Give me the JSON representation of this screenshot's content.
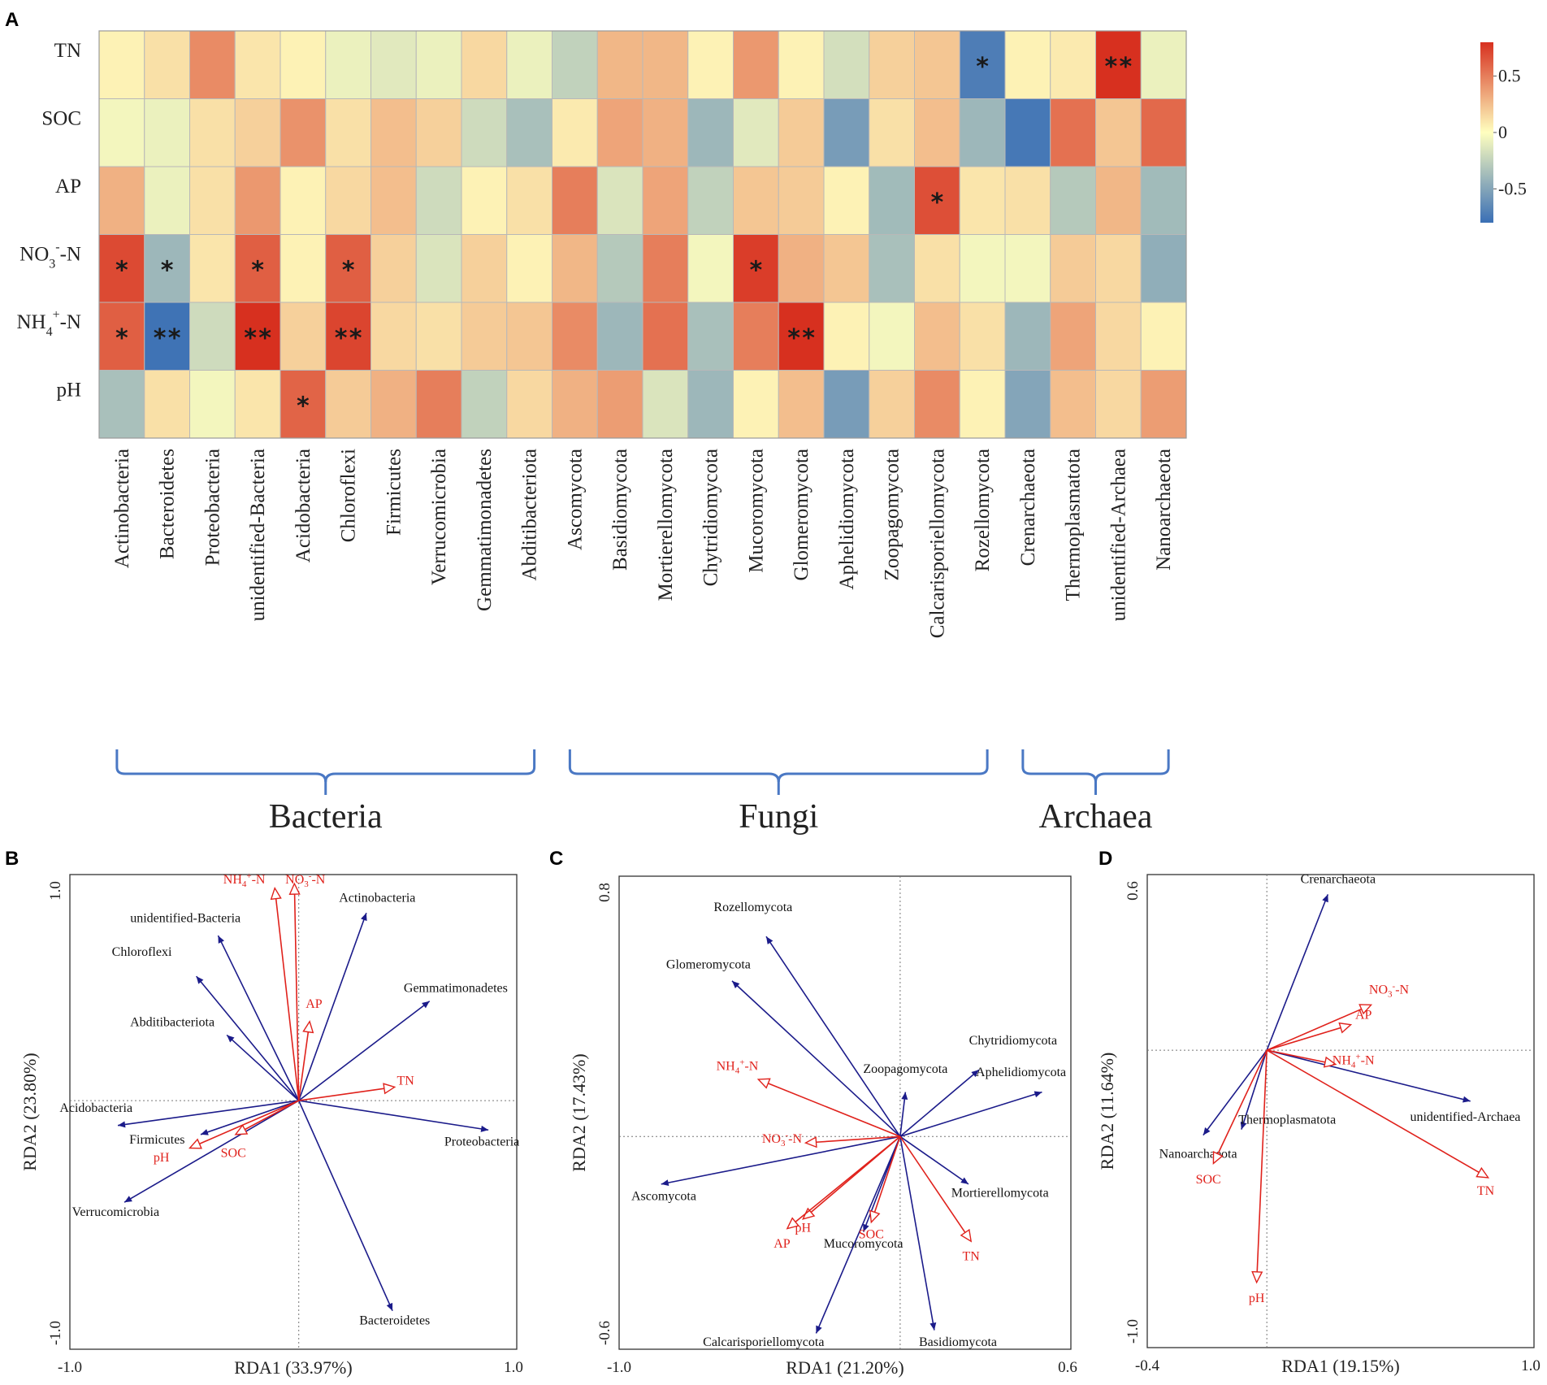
{
  "chart_data": [
    {
      "panel": "A",
      "type": "heatmap",
      "rows": [
        "TN",
        "SOC",
        "AP",
        "NO3-N",
        "NH4+-N",
        "pH"
      ],
      "row_labels": [
        {
          "main": "TN",
          "sub": "",
          "sup": "",
          "tail": ""
        },
        {
          "main": "SOC",
          "sub": "",
          "sup": "",
          "tail": ""
        },
        {
          "main": "AP",
          "sub": "",
          "sup": "",
          "tail": ""
        },
        {
          "main": "NO",
          "sub": "3",
          "sup": "-",
          "tail": "-N"
        },
        {
          "main": "NH",
          "sub": "4",
          "sup": "+",
          "tail": "-N"
        },
        {
          "main": "pH",
          "sub": "",
          "sup": "",
          "tail": ""
        }
      ],
      "columns": [
        "Actinobacteria",
        "Bacteroidetes",
        "Proteobacteria",
        "unidentified-Bacteria",
        "Acidobacteria",
        "Chloroflexi",
        "Firmicutes",
        "Verrucomicrobia",
        "Gemmatimonadetes",
        "Abditibacteriota",
        "Ascomycota",
        "Basidiomycota",
        "Mortierellomycota",
        "Chytridiomycota",
        "Mucoromycota",
        "Glomeromycota",
        "Aphelidiomycota",
        "Zoopagomycota",
        "Calcarisporiellomycota",
        "Rozellomycota",
        "Crenarchaeota",
        "Thermoplasmatota",
        "unidentified-Archaea",
        "Nanoarchaeota"
      ],
      "values": [
        [
          0.05,
          0.12,
          0.45,
          0.1,
          0.05,
          -0.08,
          -0.12,
          -0.08,
          0.15,
          -0.08,
          -0.25,
          0.28,
          0.28,
          0.05,
          0.4,
          0.05,
          -0.18,
          0.18,
          0.22,
          -0.72,
          0.05,
          0.08,
          0.85,
          -0.08
        ],
        [
          -0.05,
          -0.08,
          0.12,
          0.18,
          0.42,
          0.12,
          0.25,
          0.18,
          -0.2,
          -0.35,
          0.08,
          0.35,
          0.3,
          -0.4,
          -0.12,
          0.2,
          -0.55,
          0.12,
          0.25,
          -0.4,
          -0.75,
          0.55,
          0.22,
          0.58
        ],
        [
          0.3,
          -0.08,
          0.12,
          0.4,
          0.05,
          0.15,
          0.25,
          -0.2,
          0.05,
          0.12,
          0.5,
          -0.15,
          0.35,
          -0.25,
          0.22,
          0.2,
          0.05,
          -0.38,
          0.68,
          0.1,
          0.12,
          -0.3,
          0.28,
          -0.38
        ],
        [
          0.7,
          -0.4,
          0.1,
          0.62,
          0.05,
          0.62,
          0.18,
          -0.15,
          0.18,
          0.05,
          0.28,
          -0.3,
          0.5,
          -0.05,
          0.75,
          0.3,
          0.22,
          -0.35,
          0.12,
          -0.05,
          -0.05,
          0.2,
          0.15,
          -0.45
        ],
        [
          0.62,
          -0.78,
          -0.2,
          0.82,
          0.18,
          0.72,
          0.15,
          0.12,
          0.2,
          0.22,
          0.45,
          -0.4,
          0.55,
          -0.35,
          0.5,
          0.85,
          0.05,
          -0.05,
          0.25,
          0.12,
          -0.4,
          0.35,
          0.15,
          0.05
        ],
        [
          -0.35,
          0.12,
          -0.05,
          0.1,
          0.6,
          0.2,
          0.3,
          0.5,
          -0.25,
          0.15,
          0.3,
          0.38,
          -0.15,
          -0.4,
          0.05,
          0.25,
          -0.55,
          0.18,
          0.45,
          0.05,
          -0.5,
          0.25,
          0.15,
          0.38
        ]
      ],
      "significance": [
        [
          "",
          "",
          "",
          "",
          "",
          "",
          "",
          "",
          "",
          "",
          "",
          "",
          "",
          "",
          "",
          "",
          "",
          "",
          "",
          "*",
          "",
          "",
          "**",
          ""
        ],
        [
          "",
          "",
          "",
          "",
          "",
          "",
          "",
          "",
          "",
          "",
          "",
          "",
          "",
          "",
          "",
          "",
          "",
          "",
          "",
          "",
          "",
          "",
          "",
          ""
        ],
        [
          "",
          "",
          "",
          "",
          "",
          "",
          "",
          "",
          "",
          "",
          "",
          "",
          "",
          "",
          "",
          "",
          "",
          "",
          "*",
          "",
          "",
          "",
          "",
          ""
        ],
        [
          "*",
          "*",
          "",
          "*",
          "",
          "*",
          "",
          "",
          "",
          "",
          "",
          "",
          "",
          "",
          "*",
          "",
          "",
          "",
          "",
          "",
          "",
          "",
          "",
          ""
        ],
        [
          "*",
          "**",
          "",
          "**",
          "",
          "**",
          "",
          "",
          "",
          "",
          "",
          "",
          "",
          "",
          "",
          "**",
          "",
          "",
          "",
          "",
          "",
          "",
          "",
          ""
        ],
        [
          "",
          "",
          "",
          "",
          "*",
          "",
          "",
          "",
          "",
          "",
          "",
          "",
          "",
          "",
          "",
          "",
          "",
          "",
          "",
          "",
          "",
          "",
          "",
          ""
        ]
      ],
      "colorbar": {
        "min": -0.8,
        "max": 0.8,
        "tick_values": [
          0.5,
          0,
          -0.5
        ],
        "tick_labels": [
          "0.5",
          "0",
          "-0.5"
        ],
        "colors": {
          "neg": "#3a6fb5",
          "mid": "#ffffbf",
          "pos": "#d7301f"
        }
      },
      "groups": [
        {
          "name": "Bacteria",
          "from": 0,
          "to": 9
        },
        {
          "name": "Fungi",
          "from": 10,
          "to": 19
        },
        {
          "name": "Archaea",
          "from": 20,
          "to": 23
        }
      ],
      "bracket_color": "#4a78c4"
    },
    {
      "panel": "B",
      "type": "biplot",
      "xlabel": "RDA1 (33.97%)",
      "ylabel": "RDA2 (23.80%)",
      "xlim": [
        -1.05,
        1.0
      ],
      "ylim": [
        -1.1,
        1.0
      ],
      "xticks": [
        "-1.0",
        "1.0"
      ],
      "yticks": [
        "1.0",
        "-1.0"
      ],
      "species": [
        {
          "name": "Actinobacteria",
          "x": 0.31,
          "y": 0.83,
          "lx": 0.36,
          "ly": 0.88
        },
        {
          "name": "unidentified-Bacteria",
          "x": -0.37,
          "y": 0.73,
          "lx": -0.52,
          "ly": 0.79
        },
        {
          "name": "Chloroflexi",
          "x": -0.47,
          "y": 0.55,
          "lx": -0.72,
          "ly": 0.64
        },
        {
          "name": "Gemmatimonadetes",
          "x": 0.6,
          "y": 0.44,
          "lx": 0.72,
          "ly": 0.48
        },
        {
          "name": "Abditibacteriota",
          "x": -0.33,
          "y": 0.29,
          "lx": -0.58,
          "ly": 0.33
        },
        {
          "name": "Acidobacteria",
          "x": -0.83,
          "y": -0.11,
          "lx": -0.93,
          "ly": -0.05
        },
        {
          "name": "Firmicutes",
          "x": -0.45,
          "y": -0.15,
          "lx": -0.65,
          "ly": -0.19
        },
        {
          "name": "Verrucomicrobia",
          "x": -0.8,
          "y": -0.45,
          "lx": -0.84,
          "ly": -0.51
        },
        {
          "name": "Proteobacteria",
          "x": 0.87,
          "y": -0.13,
          "lx": 0.84,
          "ly": -0.2
        },
        {
          "name": "Bacteroidetes",
          "x": 0.43,
          "y": -0.93,
          "lx": 0.44,
          "ly": -0.99
        }
      ],
      "env": [
        {
          "name": "NH4+-N",
          "x": -0.11,
          "y": 0.94,
          "lx": -0.25,
          "ly": 0.96
        },
        {
          "name": "NO3--N",
          "x": -0.02,
          "y": 0.96,
          "lx": 0.03,
          "ly": 0.96
        },
        {
          "name": "AP",
          "x": 0.05,
          "y": 0.35,
          "lx": 0.07,
          "ly": 0.41
        },
        {
          "name": "TN",
          "x": 0.44,
          "y": 0.06,
          "lx": 0.49,
          "ly": 0.07
        },
        {
          "name": "SOC",
          "x": -0.29,
          "y": -0.15,
          "lx": -0.3,
          "ly": -0.25
        },
        {
          "name": "pH",
          "x": -0.5,
          "y": -0.21,
          "lx": -0.63,
          "ly": -0.27
        }
      ]
    },
    {
      "panel": "C",
      "type": "biplot",
      "xlabel": "RDA1 (21.20%)",
      "ylabel": "RDA2 (17.43%)",
      "xlim": [
        -1.07,
        0.65
      ],
      "ylim": [
        -0.67,
        0.82
      ],
      "xticks": [
        "-1.0",
        "0.6"
      ],
      "yticks": [
        "0.8",
        "-0.6"
      ],
      "species": [
        {
          "name": "Rozellomycota",
          "x": -0.51,
          "y": 0.63,
          "lx": -0.56,
          "ly": 0.71
        },
        {
          "name": "Glomeromycota",
          "x": -0.64,
          "y": 0.49,
          "lx": -0.73,
          "ly": 0.53
        },
        {
          "name": "Zoopagomycota",
          "x": 0.02,
          "y": 0.14,
          "lx": 0.02,
          "ly": 0.2
        },
        {
          "name": "Chytridiomycota",
          "x": 0.3,
          "y": 0.21,
          "lx": 0.43,
          "ly": 0.29
        },
        {
          "name": "Aphelidiomycota",
          "x": 0.54,
          "y": 0.14,
          "lx": 0.46,
          "ly": 0.19
        },
        {
          "name": "Ascomycota",
          "x": -0.91,
          "y": -0.15,
          "lx": -0.9,
          "ly": -0.2
        },
        {
          "name": "Mortierellomycota",
          "x": 0.26,
          "y": -0.15,
          "lx": 0.38,
          "ly": -0.19
        },
        {
          "name": "Mucoromycota",
          "x": -0.14,
          "y": -0.3,
          "lx": -0.14,
          "ly": -0.35
        },
        {
          "name": "Calcarisporiellomycota",
          "x": -0.32,
          "y": -0.62,
          "lx": -0.52,
          "ly": -0.66
        },
        {
          "name": "Basidiomycota",
          "x": 0.13,
          "y": -0.61,
          "lx": 0.22,
          "ly": -0.66
        }
      ],
      "env": [
        {
          "name": "NH4+-N",
          "x": -0.54,
          "y": 0.18,
          "lx": -0.62,
          "ly": 0.21
        },
        {
          "name": "NO3--N",
          "x": -0.36,
          "y": -0.02,
          "lx": -0.45,
          "ly": -0.02
        },
        {
          "name": "pH",
          "x": -0.37,
          "y": -0.26,
          "lx": -0.37,
          "ly": -0.3
        },
        {
          "name": "AP",
          "x": -0.43,
          "y": -0.29,
          "lx": -0.45,
          "ly": -0.35
        },
        {
          "name": "SOC",
          "x": -0.11,
          "y": -0.27,
          "lx": -0.11,
          "ly": -0.32
        },
        {
          "name": "TN",
          "x": 0.27,
          "y": -0.33,
          "lx": 0.27,
          "ly": -0.39
        }
      ]
    },
    {
      "panel": "D",
      "type": "biplot",
      "xlabel": "RDA1 (19.15%)",
      "ylabel": "RDA2 (11.64%)",
      "xlim": [
        -0.47,
        1.05
      ],
      "ylim": [
        -1.05,
        0.62
      ],
      "xticks": [
        "-0.4",
        "1.0"
      ],
      "yticks": [
        "0.6",
        "-1.0"
      ],
      "species": [
        {
          "name": "Crenarchaeota",
          "x": 0.24,
          "y": 0.55,
          "lx": 0.28,
          "ly": 0.59
        },
        {
          "name": "unidentified-Archaea",
          "x": 0.8,
          "y": -0.18,
          "lx": 0.78,
          "ly": -0.25
        },
        {
          "name": "Thermoplasmatota",
          "x": -0.1,
          "y": -0.28,
          "lx": 0.08,
          "ly": -0.26
        },
        {
          "name": "Nanoarchaeota",
          "x": -0.25,
          "y": -0.3,
          "lx": -0.27,
          "ly": -0.38
        }
      ],
      "env": [
        {
          "name": "NO3--N",
          "x": 0.41,
          "y": 0.16,
          "lx": 0.48,
          "ly": 0.2
        },
        {
          "name": "AP",
          "x": 0.33,
          "y": 0.09,
          "lx": 0.38,
          "ly": 0.11
        },
        {
          "name": "NH4+-N",
          "x": 0.27,
          "y": -0.05,
          "lx": 0.34,
          "ly": -0.05
        },
        {
          "name": "TN",
          "x": 0.87,
          "y": -0.45,
          "lx": 0.86,
          "ly": -0.51
        },
        {
          "name": "SOC",
          "x": -0.21,
          "y": -0.4,
          "lx": -0.23,
          "ly": -0.47
        },
        {
          "name": "pH",
          "x": -0.04,
          "y": -0.82,
          "lx": -0.04,
          "ly": -0.89
        }
      ]
    }
  ],
  "panel_labels": [
    "A",
    "B",
    "C",
    "D"
  ]
}
